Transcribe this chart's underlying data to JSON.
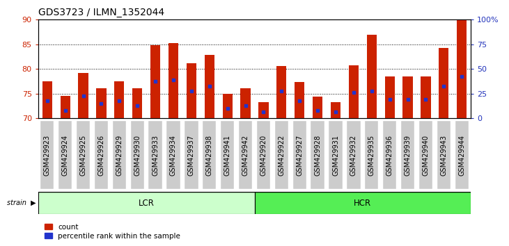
{
  "title": "GDS3723 / ILMN_1352044",
  "samples": [
    "GSM429923",
    "GSM429924",
    "GSM429925",
    "GSM429926",
    "GSM429929",
    "GSM429930",
    "GSM429933",
    "GSM429934",
    "GSM429937",
    "GSM429938",
    "GSM429941",
    "GSM429942",
    "GSM429920",
    "GSM429922",
    "GSM429927",
    "GSM429928",
    "GSM429931",
    "GSM429932",
    "GSM429935",
    "GSM429936",
    "GSM429939",
    "GSM429940",
    "GSM429943",
    "GSM429944"
  ],
  "counts": [
    77.5,
    74.5,
    79.2,
    76.0,
    77.5,
    76.0,
    84.8,
    85.3,
    81.2,
    82.9,
    75.0,
    76.0,
    73.3,
    80.6,
    77.3,
    74.3,
    73.3,
    80.7,
    87.0,
    78.4,
    78.5,
    78.4,
    84.3,
    90.0
  ],
  "percentile_ranks": [
    73.5,
    71.5,
    74.5,
    73.0,
    73.5,
    72.5,
    77.5,
    77.8,
    75.5,
    76.5,
    72.0,
    72.5,
    71.2,
    75.5,
    73.5,
    71.5,
    71.3,
    75.2,
    75.5,
    73.8,
    73.8,
    73.8,
    76.5,
    78.5
  ],
  "lcr_samples": 12,
  "hcr_samples": 12,
  "lcr_label": "LCR",
  "hcr_label": "HCR",
  "strain_label": "strain",
  "ylim_left": [
    70,
    90
  ],
  "yticks_left": [
    70,
    75,
    80,
    85,
    90
  ],
  "ylim_right": [
    0,
    100
  ],
  "yticks_right": [
    0,
    25,
    50,
    75,
    100
  ],
  "bar_color": "#cc2200",
  "percentile_color": "#2233cc",
  "background_color": "#ffffff",
  "left_tick_color": "#cc2200",
  "right_tick_color": "#2233bb",
  "lcr_bg": "#ccffcc",
  "hcr_bg": "#55ee55",
  "tick_label_bg": "#cccccc",
  "legend_count": "count",
  "legend_percentile": "percentile rank within the sample",
  "bar_width": 0.55,
  "title_fontsize": 10,
  "tick_fontsize": 7,
  "axis_label_fontsize": 8
}
